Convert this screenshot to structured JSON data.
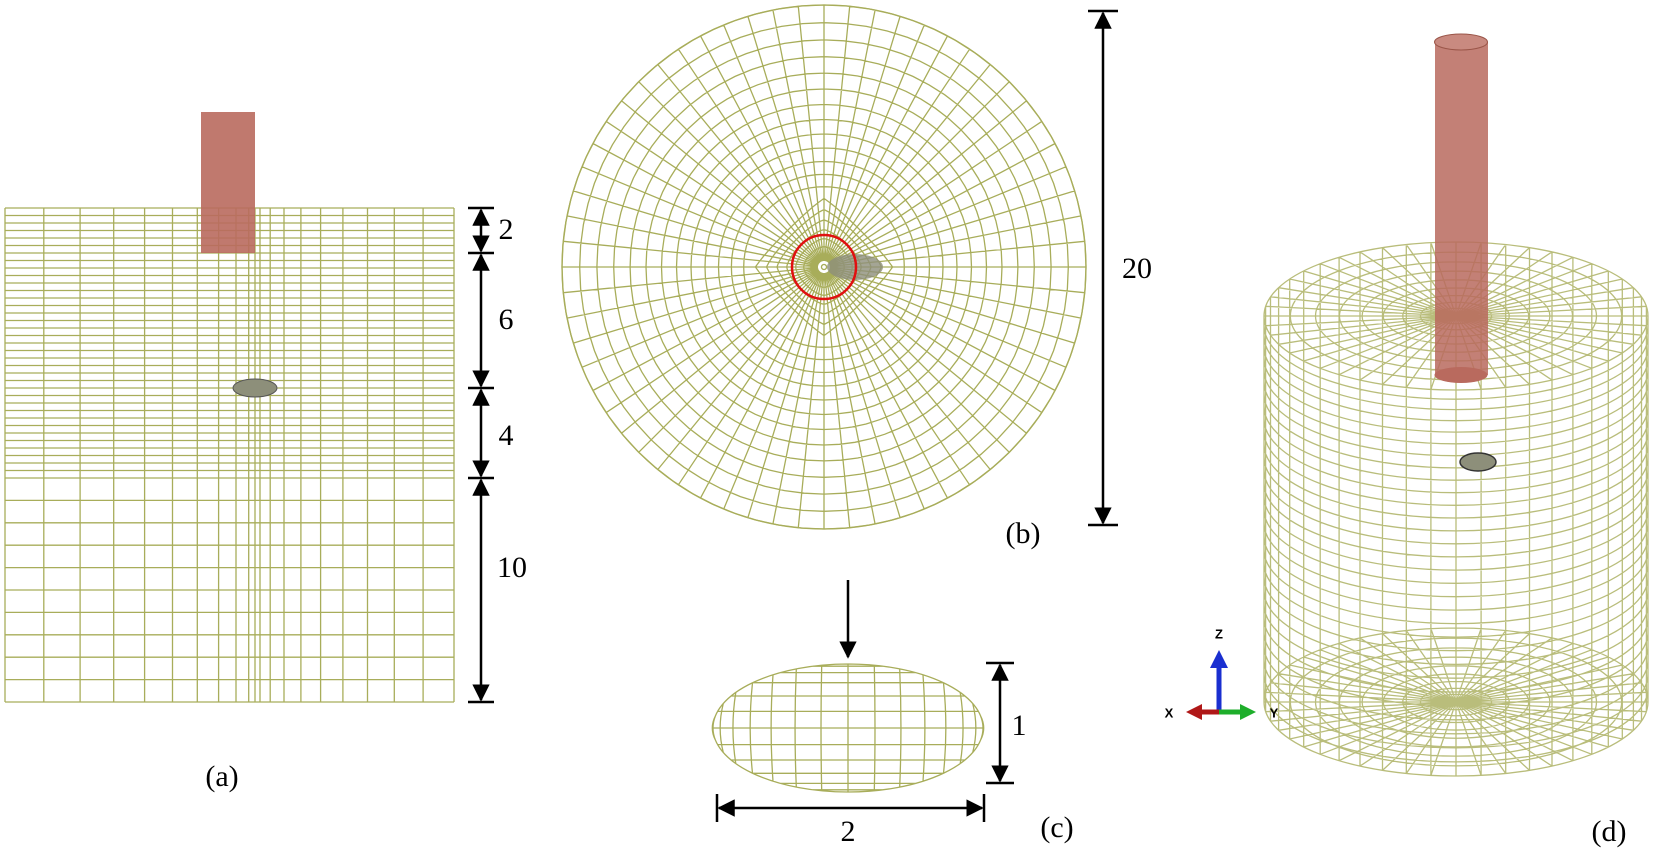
{
  "panel_a": {
    "dimensions": [
      "2",
      "6",
      "4",
      "10"
    ],
    "caption": "(a)"
  },
  "panel_b": {
    "dimension": "20",
    "caption": "(b)"
  },
  "panel_c": {
    "height": "1",
    "width": "2",
    "caption": "(c)"
  },
  "panel_d": {
    "axes": [
      "Z",
      "X",
      "Y"
    ],
    "caption": "(d)"
  }
}
